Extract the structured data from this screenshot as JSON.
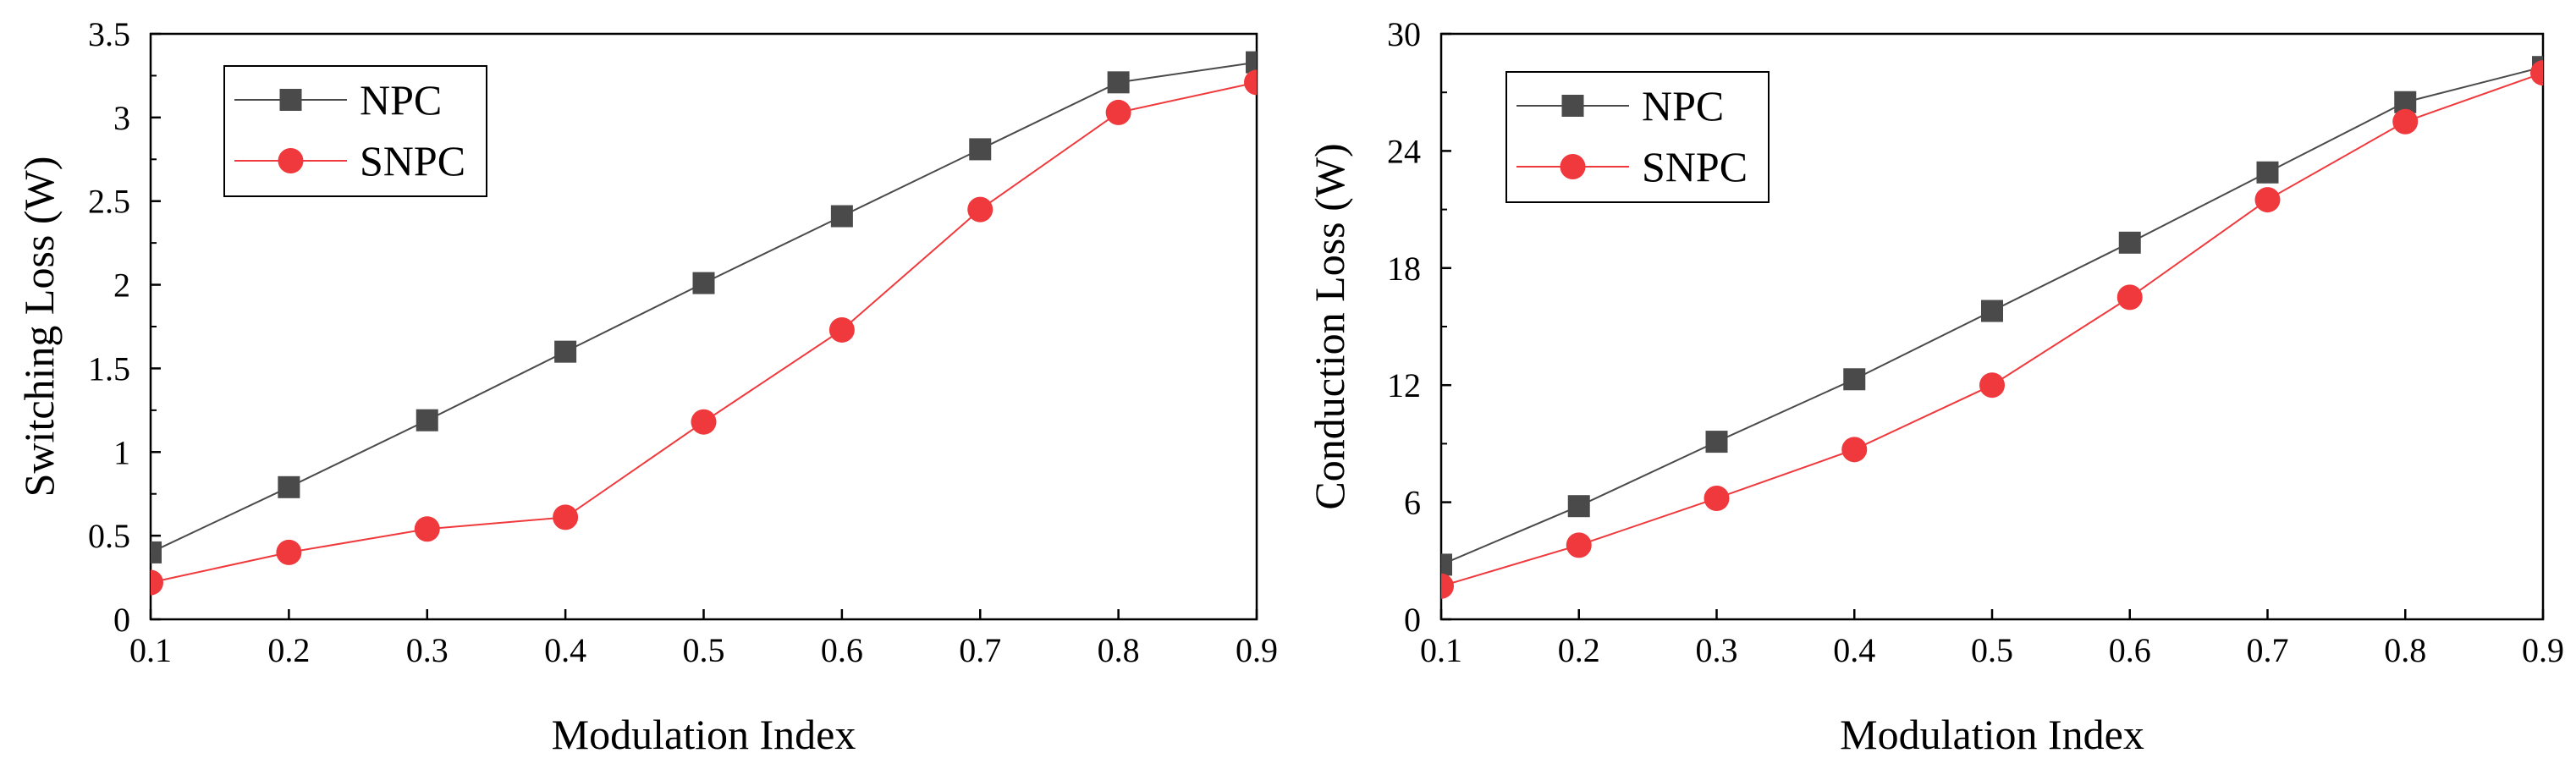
{
  "chart_data": [
    {
      "type": "line",
      "xlabel": "Modulation Index",
      "ylabel": "Switching Loss (W)",
      "xlim": [
        0.1,
        0.9
      ],
      "ylim": [
        0,
        3.5
      ],
      "x": [
        0.1,
        0.2,
        0.3,
        0.4,
        0.5,
        0.6,
        0.7,
        0.8,
        0.9
      ],
      "xticks": [
        "0.1",
        "0.2",
        "0.3",
        "0.4",
        "0.5",
        "0.6",
        "0.7",
        "0.8",
        "0.9"
      ],
      "yticks": [
        {
          "value": 0,
          "label": "0"
        },
        {
          "value": 0.5,
          "label": "0.5"
        },
        {
          "value": 1,
          "label": "1"
        },
        {
          "value": 1.5,
          "label": "1.5"
        },
        {
          "value": 2,
          "label": "2"
        },
        {
          "value": 2.5,
          "label": "2.5"
        },
        {
          "value": 3,
          "label": "3"
        },
        {
          "value": 3.5,
          "label": "3.5"
        }
      ],
      "legend_position": "top-left",
      "series": [
        {
          "name": "NPC",
          "color": "#4a4a4a",
          "marker": "square",
          "values": [
            0.4,
            0.79,
            1.19,
            1.6,
            2.01,
            2.41,
            2.81,
            3.21,
            3.33
          ]
        },
        {
          "name": "SNPC",
          "color": "#f0393c",
          "marker": "circle",
          "values": [
            0.22,
            0.4,
            0.54,
            0.61,
            1.18,
            1.73,
            2.45,
            3.03,
            3.21
          ]
        }
      ]
    },
    {
      "type": "line",
      "xlabel": "Modulation Index",
      "ylabel": "Conduction Loss (W)",
      "xlim": [
        0.1,
        0.9
      ],
      "ylim": [
        0,
        30
      ],
      "x": [
        0.1,
        0.2,
        0.3,
        0.4,
        0.5,
        0.6,
        0.7,
        0.8,
        0.9
      ],
      "xticks": [
        "0.1",
        "0.2",
        "0.3",
        "0.4",
        "0.5",
        "0.6",
        "0.7",
        "0.8",
        "0.9"
      ],
      "yticks": [
        {
          "value": 0,
          "label": "0"
        },
        {
          "value": 6,
          "label": "6"
        },
        {
          "value": 12,
          "label": "12"
        },
        {
          "value": 18,
          "label": "18"
        },
        {
          "value": 24,
          "label": "24"
        },
        {
          "value": 30,
          "label": "30"
        }
      ],
      "legend_position": "top-left",
      "series": [
        {
          "name": "NPC",
          "color": "#4a4a4a",
          "marker": "square",
          "values": [
            2.8,
            5.8,
            9.1,
            12.3,
            15.8,
            19.3,
            22.9,
            26.5,
            28.3
          ]
        },
        {
          "name": "SNPC",
          "color": "#f0393c",
          "marker": "circle",
          "values": [
            1.7,
            3.8,
            6.2,
            8.7,
            12.0,
            16.5,
            21.5,
            25.5,
            28.0
          ]
        }
      ]
    }
  ]
}
